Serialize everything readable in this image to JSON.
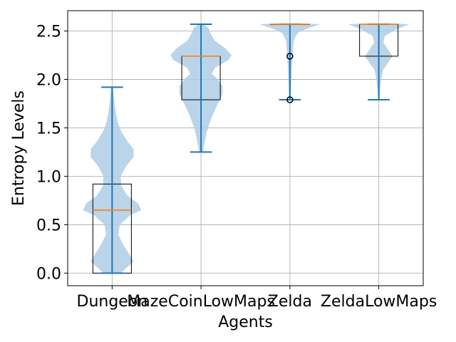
{
  "chart_data": {
    "type": "violin+box",
    "xlabel": "Agents",
    "ylabel": "Entropy Levels",
    "categories": [
      "Dungeon",
      "MazeCoinLowMaps",
      "Zelda",
      "ZeldaLowMaps"
    ],
    "ylim": [
      -0.13,
      2.71
    ],
    "yticks": [
      0.0,
      0.5,
      1.0,
      1.5,
      2.0,
      2.5
    ],
    "ytick_labels": [
      "0.0",
      "0.5",
      "1.0",
      "1.5",
      "2.0",
      "2.5"
    ],
    "grid": true,
    "colors": {
      "violin": "#aecde6",
      "stat_lines": "#1f77b4",
      "median": "#ff7f0e",
      "box": "#000000"
    },
    "series": [
      {
        "category": "Dungeon",
        "box": {
          "q1": 0.0,
          "median": 0.65,
          "q3": 0.92
        },
        "whiskers": [
          0.0,
          1.92
        ],
        "outliers": [],
        "violin_profile": [
          [
            0.0,
            0.28
          ],
          [
            0.05,
            0.45
          ],
          [
            0.12,
            0.7
          ],
          [
            0.2,
            0.55
          ],
          [
            0.3,
            0.35
          ],
          [
            0.4,
            0.2
          ],
          [
            0.5,
            0.25
          ],
          [
            0.6,
            0.6
          ],
          [
            0.65,
            0.95
          ],
          [
            0.72,
            0.85
          ],
          [
            0.8,
            0.5
          ],
          [
            0.9,
            0.3
          ],
          [
            1.0,
            0.28
          ],
          [
            1.1,
            0.45
          ],
          [
            1.2,
            0.7
          ],
          [
            1.28,
            0.7
          ],
          [
            1.36,
            0.5
          ],
          [
            1.46,
            0.3
          ],
          [
            1.56,
            0.18
          ],
          [
            1.66,
            0.12
          ],
          [
            1.76,
            0.08
          ],
          [
            1.86,
            0.05
          ],
          [
            1.92,
            0.02
          ]
        ]
      },
      {
        "category": "MazeCoinLowMaps",
        "box": {
          "q1": 1.79,
          "median": 2.24,
          "q3": 2.24
        },
        "whiskers": [
          1.25,
          2.57
        ],
        "outliers": [],
        "violin_profile": [
          [
            1.25,
            0.06
          ],
          [
            1.35,
            0.12
          ],
          [
            1.45,
            0.18
          ],
          [
            1.55,
            0.28
          ],
          [
            1.65,
            0.4
          ],
          [
            1.75,
            0.55
          ],
          [
            1.85,
            0.7
          ],
          [
            1.93,
            0.7
          ],
          [
            2.0,
            0.55
          ],
          [
            2.06,
            0.35
          ],
          [
            2.12,
            0.45
          ],
          [
            2.2,
            0.9
          ],
          [
            2.25,
            1.0
          ],
          [
            2.32,
            0.8
          ],
          [
            2.4,
            0.45
          ],
          [
            2.48,
            0.3
          ],
          [
            2.53,
            0.25
          ],
          [
            2.57,
            0.08
          ]
        ]
      },
      {
        "category": "Zelda",
        "box": {
          "q1": 2.57,
          "median": 2.57,
          "q3": 2.57
        },
        "whiskers": [
          1.79,
          2.57
        ],
        "outliers": [
          1.79,
          2.24
        ],
        "violin_profile": [
          [
            1.79,
            0.03
          ],
          [
            1.9,
            0.04
          ],
          [
            2.0,
            0.05
          ],
          [
            2.1,
            0.06
          ],
          [
            2.2,
            0.08
          ],
          [
            2.3,
            0.1
          ],
          [
            2.4,
            0.12
          ],
          [
            2.48,
            0.25
          ],
          [
            2.53,
            0.6
          ],
          [
            2.57,
            1.0
          ],
          [
            2.58,
            0.3
          ]
        ]
      },
      {
        "category": "ZeldaLowMaps",
        "box": {
          "q1": 2.24,
          "median": 2.57,
          "q3": 2.57
        },
        "whiskers": [
          1.79,
          2.57
        ],
        "outliers": [],
        "violin_profile": [
          [
            1.79,
            0.02
          ],
          [
            1.9,
            0.04
          ],
          [
            2.0,
            0.08
          ],
          [
            2.1,
            0.14
          ],
          [
            2.17,
            0.3
          ],
          [
            2.24,
            0.45
          ],
          [
            2.31,
            0.3
          ],
          [
            2.38,
            0.15
          ],
          [
            2.45,
            0.2
          ],
          [
            2.52,
            0.6
          ],
          [
            2.57,
            1.0
          ],
          [
            2.58,
            0.3
          ]
        ]
      }
    ]
  }
}
